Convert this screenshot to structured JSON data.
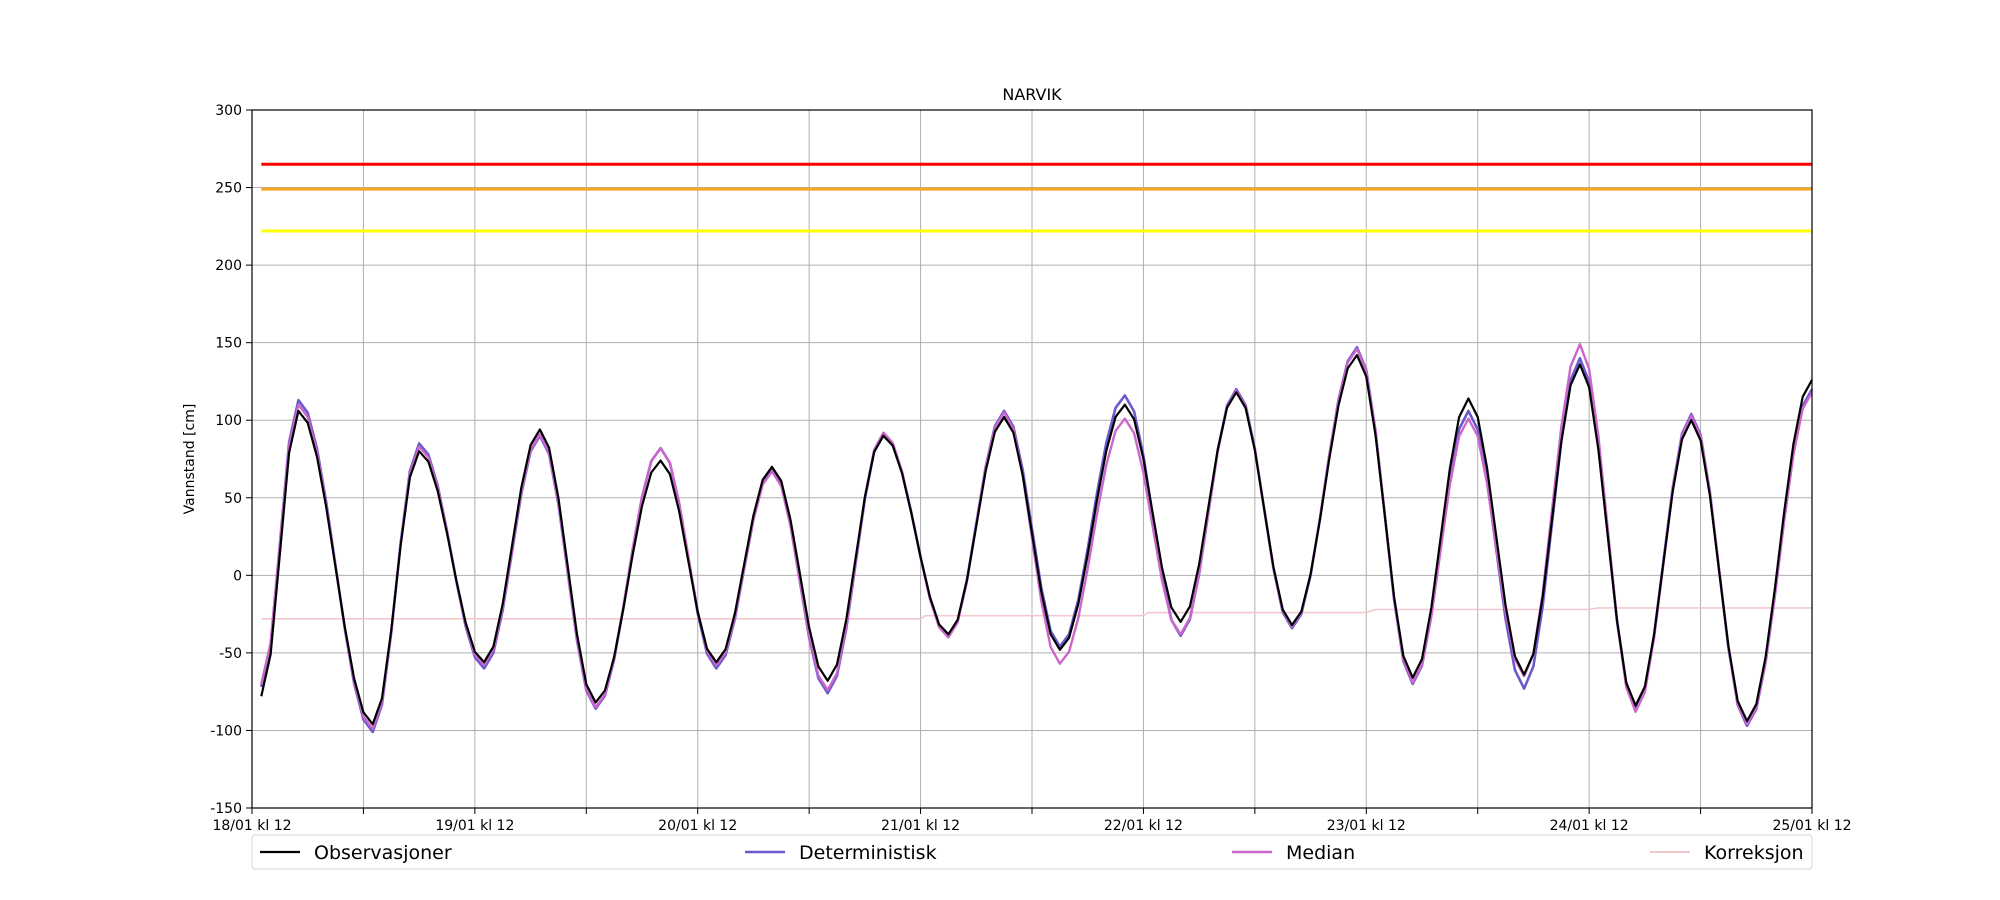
{
  "chart_data": {
    "type": "line",
    "title": "NARVIK",
    "xlabel": "",
    "ylabel": "Vannstand [cm]",
    "ylim": [
      -150,
      300
    ],
    "yticks": [
      -150,
      -100,
      -50,
      0,
      50,
      100,
      150,
      200,
      250,
      300
    ],
    "xlim_hours": [
      0,
      168
    ],
    "xticks": [
      {
        "h": 0,
        "label": "18/01 kl 12"
      },
      {
        "h": 12,
        "label": ""
      },
      {
        "h": 24,
        "label": "19/01 kl 12"
      },
      {
        "h": 36,
        "label": ""
      },
      {
        "h": 48,
        "label": "20/01 kl 12"
      },
      {
        "h": 60,
        "label": ""
      },
      {
        "h": 72,
        "label": "21/01 kl 12"
      },
      {
        "h": 84,
        "label": ""
      },
      {
        "h": 96,
        "label": "22/01 kl 12"
      },
      {
        "h": 108,
        "label": ""
      },
      {
        "h": 120,
        "label": "23/01 kl 12"
      },
      {
        "h": 132,
        "label": ""
      },
      {
        "h": 144,
        "label": "24/01 kl 12"
      },
      {
        "h": 156,
        "label": ""
      },
      {
        "h": 168,
        "label": "25/01 kl 12"
      }
    ],
    "grid": true,
    "legend_placement": "bottom",
    "thresholds": [
      {
        "value": 265,
        "color": "#ff0000"
      },
      {
        "value": 249,
        "color": "#f5a623"
      },
      {
        "value": 222,
        "color": "#ffff00"
      }
    ],
    "threshold_start_h": 1,
    "series": [
      {
        "name": "Observasjoner",
        "color": "#000000",
        "width": 2.2,
        "extrema": [
          [
            1,
            -78
          ],
          [
            5,
            106
          ],
          [
            13,
            -96
          ],
          [
            18,
            80
          ],
          [
            25,
            -56
          ],
          [
            31,
            94
          ],
          [
            37,
            -82
          ],
          [
            44,
            74
          ],
          [
            50,
            -56
          ],
          [
            56,
            70
          ],
          [
            62,
            -68
          ],
          [
            68,
            90
          ],
          [
            75,
            -38
          ],
          [
            81,
            102
          ],
          [
            87,
            -48
          ],
          [
            94,
            110
          ],
          [
            100,
            -30
          ],
          [
            106,
            118
          ],
          [
            112,
            -32
          ],
          [
            119,
            142
          ],
          [
            125,
            -66
          ],
          [
            131,
            114
          ],
          [
            137,
            -64
          ],
          [
            143,
            136
          ],
          [
            149,
            -84
          ],
          [
            155,
            100
          ],
          [
            161,
            -94
          ],
          [
            168,
            126
          ]
        ]
      },
      {
        "name": "Deterministisk",
        "color": "#6a5acd",
        "width": 2.6,
        "extrema": [
          [
            1,
            -72
          ],
          [
            5,
            113
          ],
          [
            13,
            -101
          ],
          [
            18,
            85
          ],
          [
            25,
            -60
          ],
          [
            31,
            90
          ],
          [
            37,
            -86
          ],
          [
            44,
            82
          ],
          [
            50,
            -60
          ],
          [
            56,
            68
          ],
          [
            62,
            -76
          ],
          [
            68,
            91
          ],
          [
            75,
            -39
          ],
          [
            81,
            106
          ],
          [
            87,
            -46
          ],
          [
            94,
            116
          ],
          [
            100,
            -39
          ],
          [
            106,
            120
          ],
          [
            112,
            -34
          ],
          [
            119,
            147
          ],
          [
            125,
            -70
          ],
          [
            131,
            106
          ],
          [
            137,
            -73
          ],
          [
            143,
            140
          ],
          [
            149,
            -86
          ],
          [
            155,
            104
          ],
          [
            161,
            -97
          ],
          [
            168,
            120
          ]
        ]
      },
      {
        "name": "Median",
        "color": "#cc66cc",
        "width": 2.4,
        "extrema": [
          [
            1,
            -70
          ],
          [
            5,
            110
          ],
          [
            13,
            -99
          ],
          [
            18,
            83
          ],
          [
            25,
            -58
          ],
          [
            31,
            91
          ],
          [
            37,
            -85
          ],
          [
            44,
            82
          ],
          [
            50,
            -58
          ],
          [
            56,
            67
          ],
          [
            62,
            -74
          ],
          [
            68,
            92
          ],
          [
            75,
            -40
          ],
          [
            81,
            105
          ],
          [
            87,
            -57
          ],
          [
            94,
            101
          ],
          [
            100,
            -38
          ],
          [
            106,
            119
          ],
          [
            112,
            -33
          ],
          [
            119,
            146
          ],
          [
            125,
            -69
          ],
          [
            131,
            101
          ],
          [
            137,
            -65
          ],
          [
            143,
            149
          ],
          [
            149,
            -88
          ],
          [
            155,
            103
          ],
          [
            161,
            -96
          ],
          [
            168,
            118
          ]
        ]
      },
      {
        "name": "Korreksjon",
        "color": "#f4c8cc",
        "width": 1.6,
        "step": [
          [
            1,
            -28
          ],
          [
            72,
            -28
          ],
          [
            72.5,
            -26
          ],
          [
            96,
            -26
          ],
          [
            96.5,
            -24
          ],
          [
            120,
            -24
          ],
          [
            121,
            -22
          ],
          [
            144,
            -22
          ],
          [
            145,
            -21
          ],
          [
            168,
            -21
          ]
        ]
      }
    ]
  }
}
